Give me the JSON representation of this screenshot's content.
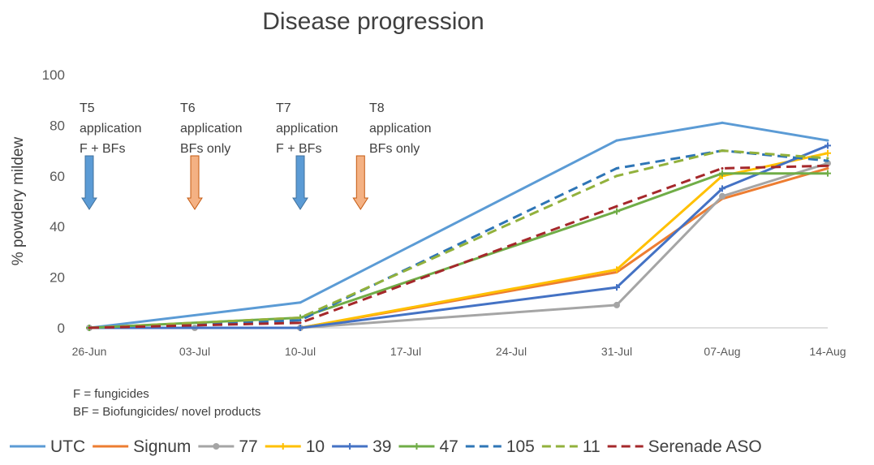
{
  "chart_data": {
    "type": "line",
    "title": "Disease progression",
    "ylabel": "% powdery mildew",
    "xlabel": "",
    "ylim": [
      0,
      100
    ],
    "yticks": [
      0,
      20,
      40,
      60,
      80,
      100
    ],
    "x_tick_labels": [
      "26-Jun",
      "03-Jul",
      "10-Jul",
      "17-Jul",
      "24-Jul",
      "31-Jul",
      "07-Aug",
      "14-Aug"
    ],
    "grid": false,
    "legend_position": "bottom",
    "series": [
      {
        "name": "UTC",
        "color": "#5B9BD5",
        "style": "solid",
        "marker": "none",
        "x": [
          "26-Jun",
          "10-Jul",
          "31-Jul",
          "07-Aug",
          "14-Aug"
        ],
        "values": [
          0,
          10,
          74,
          81,
          74
        ]
      },
      {
        "name": "Signum",
        "color": "#ED7D31",
        "style": "solid",
        "marker": "none",
        "x": [
          "26-Jun",
          "10-Jul",
          "31-Jul",
          "07-Aug",
          "14-Aug"
        ],
        "values": [
          0,
          0,
          22,
          51,
          63
        ]
      },
      {
        "name": "77",
        "color": "#A5A5A5",
        "style": "solid",
        "marker": "dot",
        "x": [
          "26-Jun",
          "03-Jul",
          "10-Jul",
          "31-Jul",
          "07-Aug",
          "14-Aug"
        ],
        "values": [
          0,
          0,
          0,
          9,
          52,
          65
        ]
      },
      {
        "name": "10",
        "color": "#FFC000",
        "style": "solid",
        "marker": "plus",
        "x": [
          "26-Jun",
          "10-Jul",
          "31-Jul",
          "07-Aug",
          "14-Aug"
        ],
        "values": [
          0,
          0,
          23,
          60,
          69
        ]
      },
      {
        "name": "39",
        "color": "#4472C4",
        "style": "solid",
        "marker": "plus",
        "x": [
          "26-Jun",
          "10-Jul",
          "31-Jul",
          "07-Aug",
          "14-Aug"
        ],
        "values": [
          0,
          0,
          16,
          55,
          72
        ]
      },
      {
        "name": "47",
        "color": "#70AD47",
        "style": "solid",
        "marker": "plus",
        "x": [
          "26-Jun",
          "10-Jul",
          "31-Jul",
          "07-Aug",
          "14-Aug"
        ],
        "values": [
          0,
          4,
          46,
          61,
          61
        ]
      },
      {
        "name": "105",
        "color": "#2E75B6",
        "style": "dash",
        "marker": "none",
        "x": [
          "26-Jun",
          "10-Jul",
          "31-Jul",
          "07-Aug",
          "14-Aug"
        ],
        "values": [
          0,
          3,
          63,
          70,
          66
        ]
      },
      {
        "name": "11",
        "color": "#92B13C",
        "style": "dash",
        "marker": "none",
        "x": [
          "26-Jun",
          "10-Jul",
          "31-Jul",
          "07-Aug",
          "14-Aug"
        ],
        "values": [
          0,
          4,
          60,
          70,
          67
        ]
      },
      {
        "name": "Serenade ASO",
        "color": "#A5282B",
        "style": "dash",
        "marker": "none",
        "x": [
          "26-Jun",
          "10-Jul",
          "31-Jul",
          "07-Aug",
          "14-Aug"
        ],
        "values": [
          0,
          2,
          48,
          63,
          64
        ]
      }
    ],
    "annotations": [
      {
        "lines": [
          "T5",
          "application",
          "F + BFs"
        ],
        "x": "26-Jun",
        "arrow_color": "#5B9BD5"
      },
      {
        "lines": [
          "T6",
          "application",
          "BFs only"
        ],
        "x": "03-Jul",
        "arrow_color": "#F4B183"
      },
      {
        "lines": [
          "T7",
          "application",
          "F + BFs"
        ],
        "x": "10-Jul",
        "arrow_color": "#5B9BD5"
      },
      {
        "lines": [
          "T8",
          "application",
          "BFs only"
        ],
        "x": "14-Jul",
        "arrow_color": "#F4B183"
      }
    ],
    "notes": [
      "F = fungicides",
      "BF = Biofungicides/ novel products"
    ]
  }
}
